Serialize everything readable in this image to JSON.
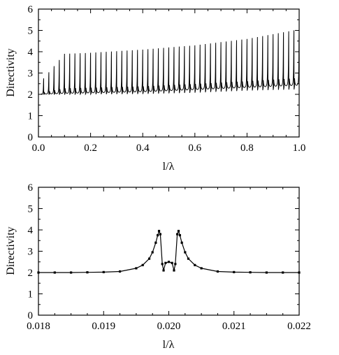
{
  "chart_data": [
    {
      "type": "line",
      "title": "",
      "xlabel": "l/λ",
      "ylabel": "Directivity",
      "xlim": [
        0.0,
        1.0
      ],
      "ylim": [
        0,
        6
      ],
      "x_ticks": [
        0.0,
        0.2,
        0.4,
        0.6,
        0.8,
        1.0
      ],
      "x_tick_labels": [
        "0.0",
        "0.2",
        "0.4",
        "0.6",
        "0.8",
        "1.0"
      ],
      "y_ticks": [
        0,
        1,
        2,
        3,
        4,
        5,
        6
      ],
      "y_tick_labels": [
        "0",
        "1",
        "2",
        "3",
        "4",
        "5",
        "6"
      ],
      "grid": false,
      "legend": "none",
      "series": [
        {
          "style": "solid thin black line, resonance spikes at every multiple of 0.02",
          "baseline_x": [
            0.0,
            0.2,
            0.4,
            0.6,
            0.8,
            1.0
          ],
          "baseline_y": [
            2.0,
            2.05,
            2.1,
            2.2,
            2.3,
            2.4
          ],
          "resonance_spacing": 0.02,
          "peak_envelope_x": [
            0.02,
            0.1,
            0.2,
            0.4,
            0.6,
            0.8,
            1.0
          ],
          "peak_envelope_y": [
            2.75,
            3.9,
            3.95,
            4.1,
            4.3,
            4.6,
            5.05
          ],
          "dip_envelope_x": [
            0.2,
            0.4,
            0.6,
            0.8,
            1.0
          ],
          "dip_envelope_y": [
            2.0,
            2.0,
            2.05,
            2.15,
            2.2
          ]
        }
      ]
    },
    {
      "type": "line",
      "title": "",
      "xlabel": "l/λ",
      "ylabel": "Directivity",
      "xlim": [
        0.018,
        0.022
      ],
      "ylim": [
        0,
        6
      ],
      "x_ticks": [
        0.018,
        0.019,
        0.02,
        0.021,
        0.022
      ],
      "x_tick_labels": [
        "0.018",
        "0.019",
        "0.020",
        "0.021",
        "0.022"
      ],
      "y_ticks": [
        0,
        1,
        2,
        3,
        4,
        5,
        6
      ],
      "y_tick_labels": [
        "0",
        "1",
        "2",
        "3",
        "4",
        "5",
        "6"
      ],
      "grid": false,
      "legend": "none",
      "series": [
        {
          "style": "black line with small square markers",
          "x": [
            0.018,
            0.01825,
            0.0185,
            0.01875,
            0.019,
            0.01925,
            0.0195,
            0.0196,
            0.0197,
            0.01975,
            0.0198,
            0.01983,
            0.01985,
            0.01987,
            0.0199,
            0.01992,
            0.01995,
            0.02,
            0.02005,
            0.02008,
            0.0201,
            0.02013,
            0.02015,
            0.02017,
            0.0202,
            0.02025,
            0.0203,
            0.0204,
            0.0205,
            0.02075,
            0.021,
            0.02125,
            0.0215,
            0.02175,
            0.022
          ],
          "y": [
            2.0,
            2.0,
            2.0,
            2.01,
            2.02,
            2.05,
            2.2,
            2.35,
            2.65,
            2.95,
            3.4,
            3.75,
            3.95,
            3.8,
            2.4,
            2.1,
            2.45,
            2.5,
            2.45,
            2.1,
            2.4,
            3.8,
            3.95,
            3.75,
            3.4,
            2.95,
            2.65,
            2.35,
            2.2,
            2.05,
            2.02,
            2.01,
            2.0,
            2.0,
            2.0
          ]
        }
      ]
    }
  ]
}
